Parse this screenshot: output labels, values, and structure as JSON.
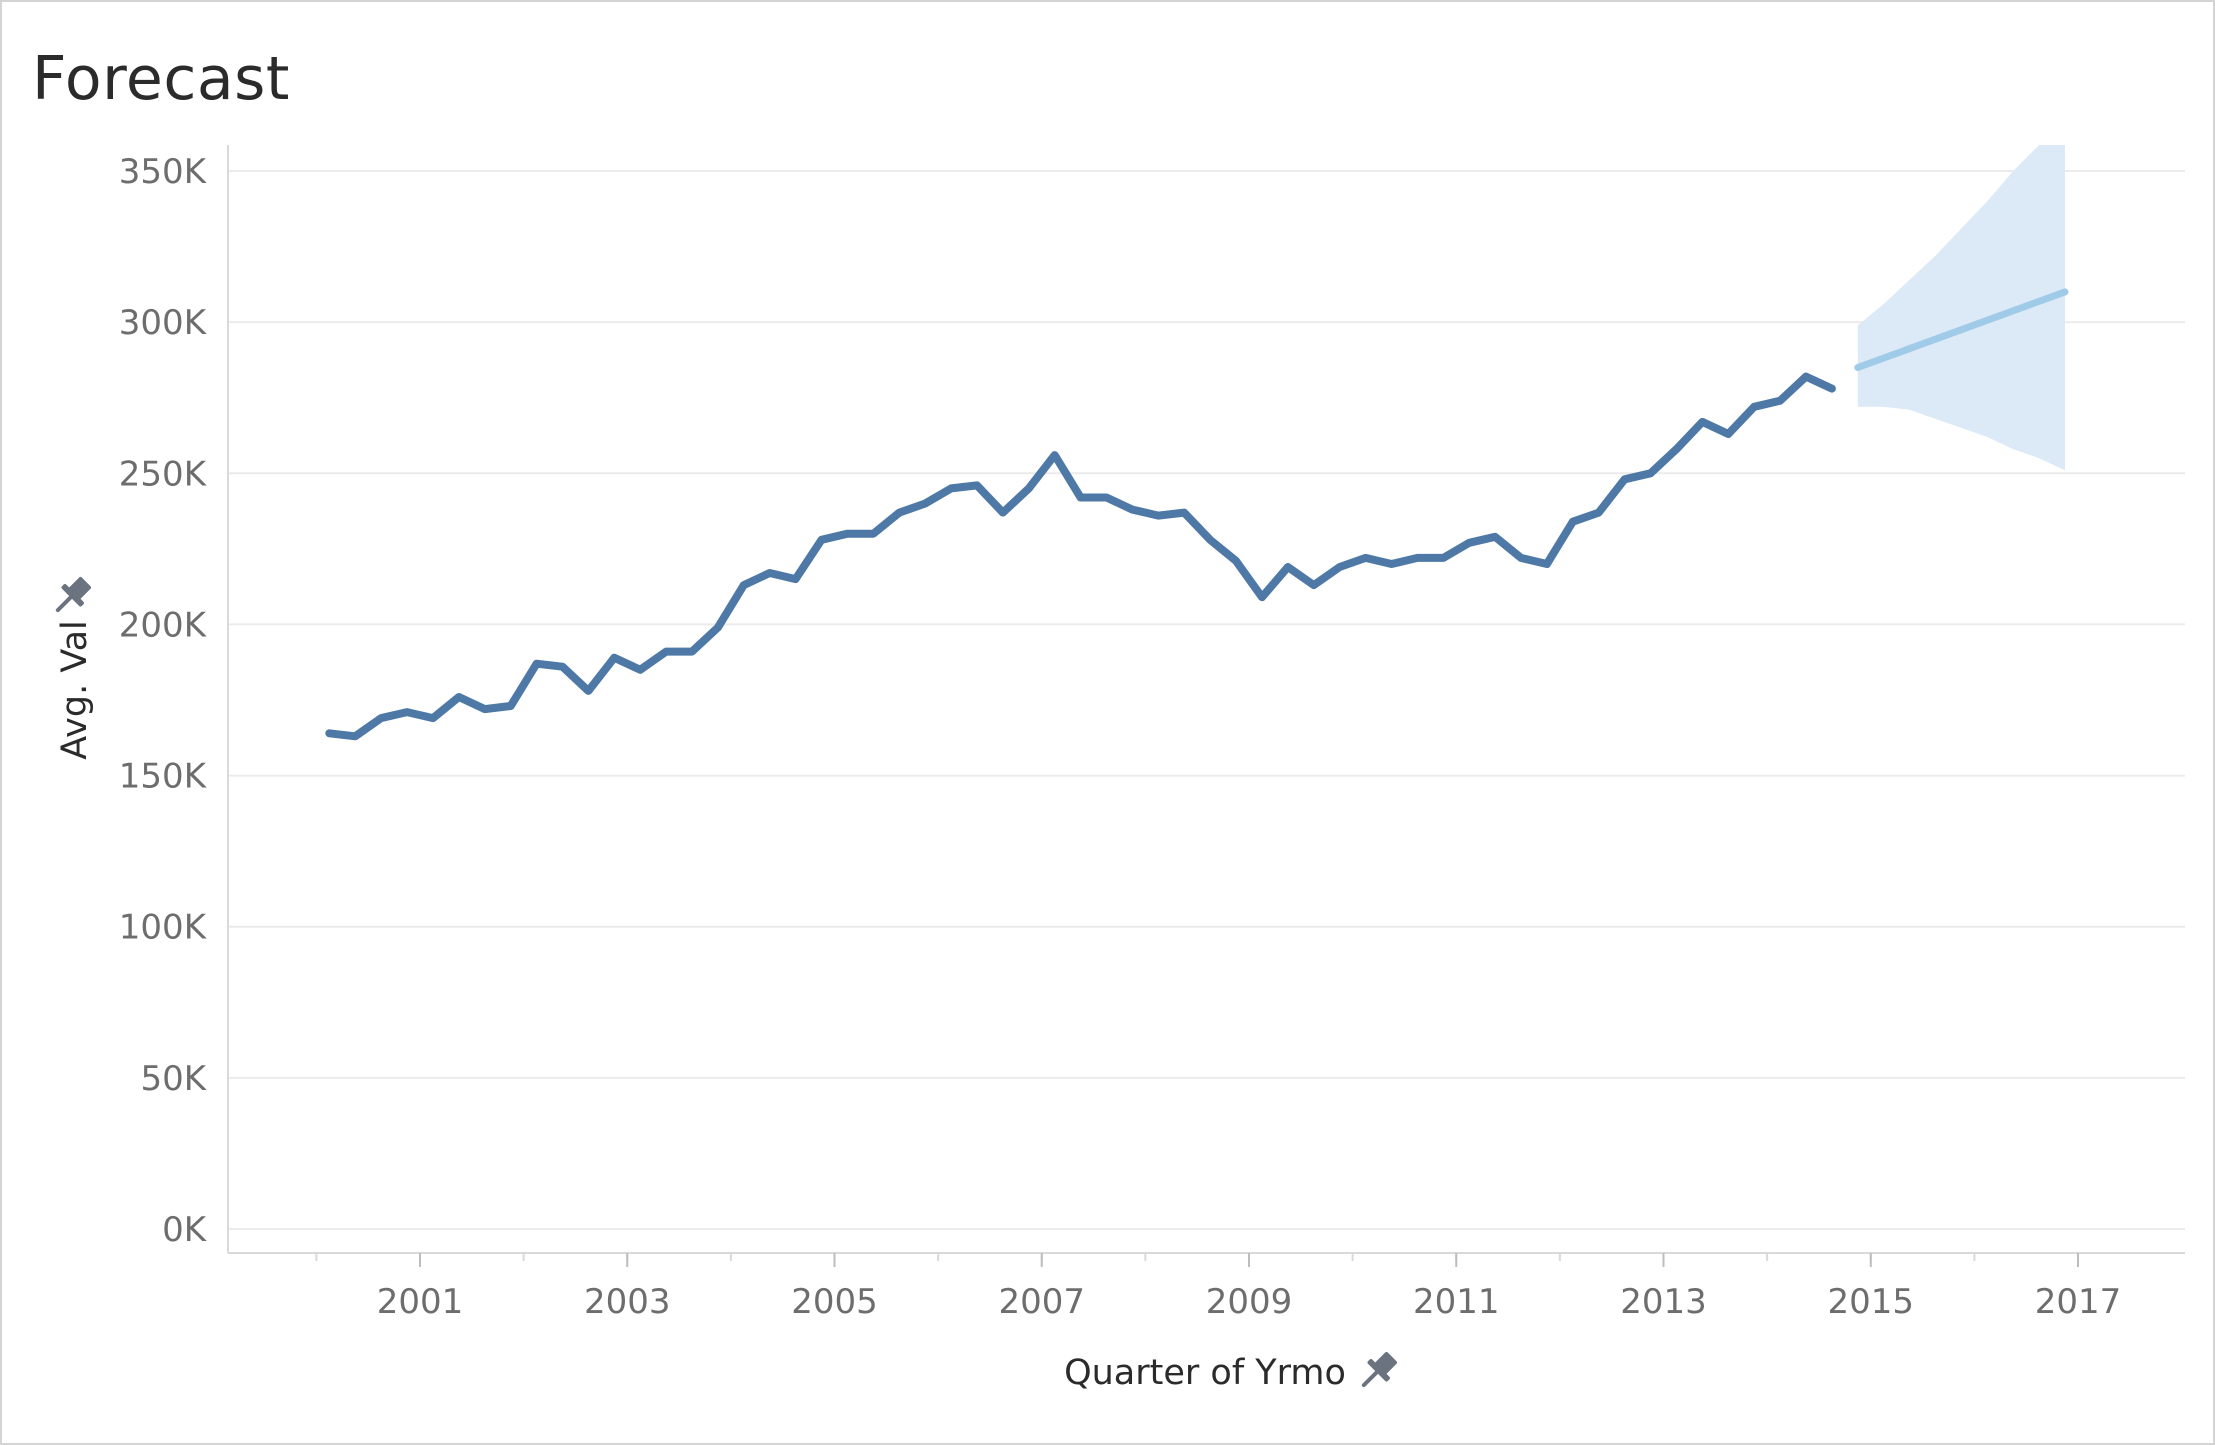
{
  "colors": {
    "actual_line": "#4e79a7",
    "forecast_line": "#a0cbe8",
    "forecast_band": "#dce9f6",
    "gridline": "#ebebeb",
    "axis_line": "#d9d9d9",
    "tick_text": "#6d6d6d",
    "pin_icon": "#6b7280"
  },
  "chart_data": {
    "type": "line",
    "title": "Forecast",
    "xlabel": "Quarter of Yrmo",
    "ylabel": "Avg. Val",
    "xlim": [
      1999.95,
      2018.0
    ],
    "ylim": [
      0,
      350000
    ],
    "grid": "horizontal",
    "x_ticks": [
      2001,
      2003,
      2005,
      2007,
      2009,
      2011,
      2013,
      2015,
      2017
    ],
    "x_tick_labels": [
      "2001",
      "2003",
      "2005",
      "2007",
      "2009",
      "2011",
      "2013",
      "2015",
      "2017"
    ],
    "y_ticks": [
      0,
      50000,
      100000,
      150000,
      200000,
      250000,
      300000,
      350000
    ],
    "y_tick_labels": [
      "0K",
      "50K",
      "100K",
      "150K",
      "200K",
      "250K",
      "300K",
      "350K"
    ],
    "series": [
      {
        "role": "actual",
        "x": [
          2000.125,
          2000.375,
          2000.625,
          2000.875,
          2001.125,
          2001.375,
          2001.625,
          2001.875,
          2002.125,
          2002.375,
          2002.625,
          2002.875,
          2003.125,
          2003.375,
          2003.625,
          2003.875,
          2004.125,
          2004.375,
          2004.625,
          2004.875,
          2005.125,
          2005.375,
          2005.625,
          2005.875,
          2006.125,
          2006.375,
          2006.625,
          2006.875,
          2007.125,
          2007.375,
          2007.625,
          2007.875,
          2008.125,
          2008.375,
          2008.625,
          2008.875,
          2009.125,
          2009.375,
          2009.625,
          2009.875,
          2010.125,
          2010.375,
          2010.625,
          2010.875,
          2011.125,
          2011.375,
          2011.625,
          2011.875,
          2012.125,
          2012.375,
          2012.625,
          2012.875,
          2013.125,
          2013.375,
          2013.625,
          2013.875,
          2014.125,
          2014.375,
          2014.625
        ],
        "values": [
          164000,
          163000,
          169000,
          171000,
          169000,
          176000,
          172000,
          173000,
          187000,
          186000,
          178000,
          189000,
          185000,
          191000,
          191000,
          199000,
          213000,
          217000,
          215000,
          228000,
          230000,
          230000,
          237000,
          240000,
          245000,
          246000,
          237000,
          245000,
          256000,
          242000,
          242000,
          238000,
          236000,
          237000,
          228000,
          221000,
          209000,
          219000,
          213000,
          219000,
          222000,
          220000,
          222000,
          222000,
          227000,
          229000,
          222000,
          220000,
          234000,
          237000,
          248000,
          250000,
          258000,
          267000,
          263000,
          272000,
          274000,
          282000,
          278000
        ]
      },
      {
        "role": "forecast",
        "x": [
          2014.875,
          2016.875
        ],
        "values": [
          285000,
          310000
        ]
      }
    ],
    "forecast_interval": {
      "x": [
        2014.875,
        2015.125,
        2015.375,
        2015.625,
        2015.875,
        2016.125,
        2016.375,
        2016.625,
        2016.875
      ],
      "upper": [
        299000,
        306000,
        314000,
        322000,
        331000,
        340000,
        350000,
        361000,
        373000
      ],
      "lower": [
        272000,
        272000,
        271000,
        268000,
        265000,
        262000,
        258000,
        255000,
        251000
      ]
    }
  }
}
